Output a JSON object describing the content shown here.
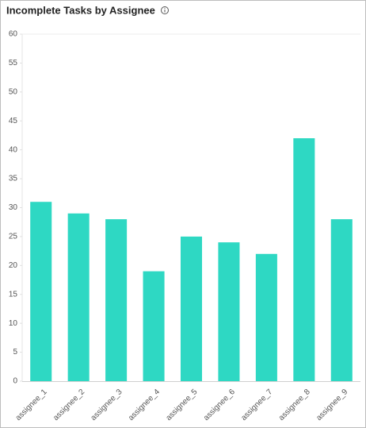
{
  "chart_data": {
    "type": "bar",
    "title": "Incomplete Tasks by Assignee",
    "categories": [
      "assignee_1",
      "assignee_2",
      "assignee_3",
      "assignee_4",
      "assignee_5",
      "assignee_6",
      "assignee_7",
      "assignee_8",
      "assignee_9"
    ],
    "values": [
      31,
      29,
      28,
      19,
      25,
      24,
      22,
      42,
      28
    ],
    "color": "#2ed8c3",
    "ylim": [
      0,
      60
    ],
    "yticks": [
      0,
      5,
      10,
      15,
      20,
      25,
      30,
      35,
      40,
      45,
      50,
      55,
      60
    ],
    "grid": false
  }
}
